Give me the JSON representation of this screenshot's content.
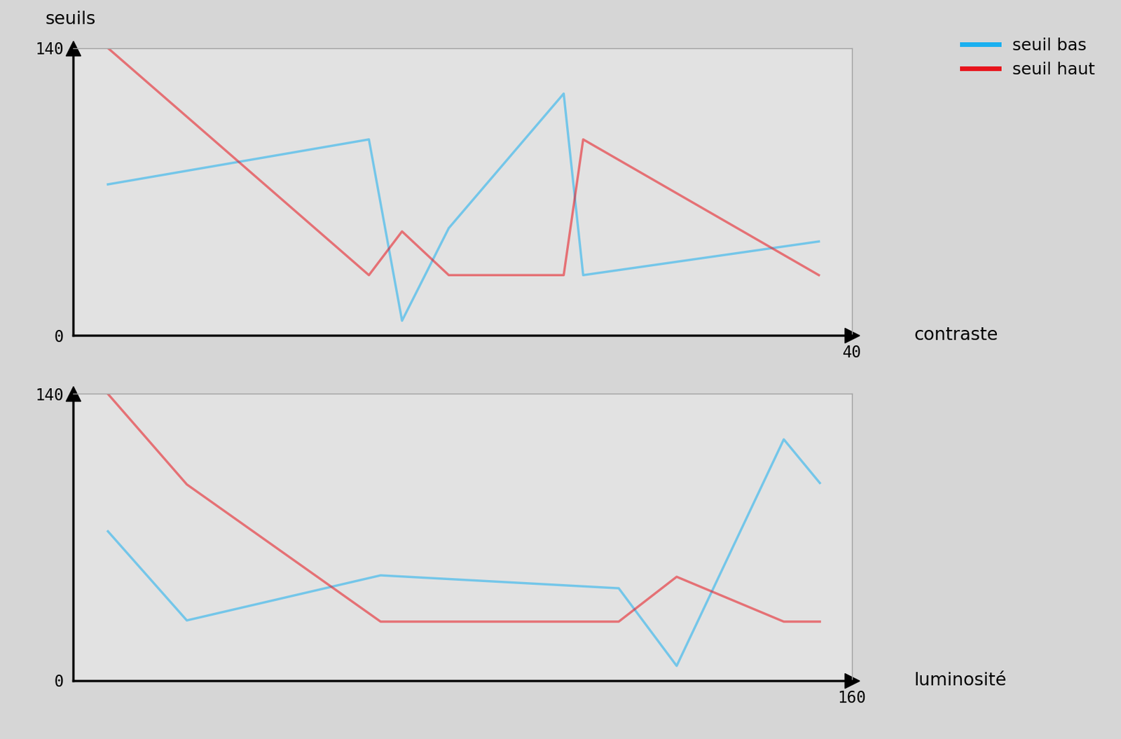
{
  "chart_data": [
    {
      "type": "line",
      "y_label": "seuils",
      "x_label": "contraste",
      "x": [
        1.8,
        15.2,
        16.9,
        19.3,
        25.2,
        26.2,
        38.3
      ],
      "series": [
        {
          "name": "seuil bas",
          "color": "#1ab0f0",
          "values": [
            73.6,
            95.5,
            7.2,
            52.3,
            117.8,
            29.4,
            45.8
          ]
        },
        {
          "name": "seuil haut",
          "color": "#e8141c",
          "values": [
            140,
            29.4,
            50.7,
            29.4,
            29.4,
            95.5,
            29.4
          ]
        }
      ],
      "xlim": [
        0,
        40
      ],
      "ylim": [
        0,
        140
      ],
      "xticks": [
        40
      ],
      "yticks": [
        0,
        140
      ],
      "legend": "upper right"
    },
    {
      "type": "line",
      "x_label": "luminosité",
      "x": [
        7.2,
        23.4,
        63.2,
        112.1,
        124.0,
        146.0,
        153.4
      ],
      "series": [
        {
          "name": "seuil bas",
          "color": "#1ab0f0",
          "values": [
            72.9,
            29.4,
            51.4,
            45.1,
            7.2,
            117.8,
            96.5
          ]
        },
        {
          "name": "seuil haut",
          "color": "#e8141c",
          "values": [
            140,
            95.8,
            28.8,
            28.8,
            50.7,
            28.8,
            28.8
          ]
        }
      ],
      "xlim": [
        0,
        160
      ],
      "ylim": [
        0,
        140
      ],
      "xticks": [
        160
      ],
      "yticks": [
        0,
        140
      ]
    }
  ]
}
